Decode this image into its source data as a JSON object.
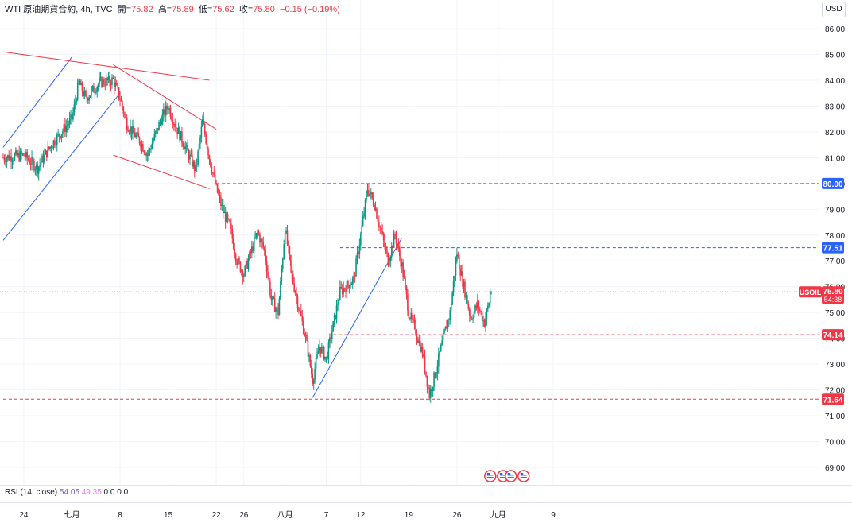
{
  "header": {
    "symbol_name": "WTI 原油期貨合約",
    "interval": "4h",
    "source": "TVC",
    "open_label": "開",
    "open": "75.82",
    "high_label": "高",
    "high": "75.89",
    "low_label": "低",
    "low": "75.62",
    "close_label": "收",
    "close": "75.80",
    "change": "−0.15 (−0.19%)"
  },
  "currency_button": "USD",
  "rsi": {
    "label": "RSI (14, close)",
    "value1": "54.05",
    "value2": "49.35",
    "zeros": "0 0 0 0"
  },
  "colors": {
    "up": "#089981",
    "down": "#f23645",
    "trend_blue": "#2962ff",
    "trend_red": "#f23645",
    "level_blue": "#2962ff",
    "level_red": "#f23645"
  },
  "chart_data": {
    "type": "candlestick",
    "y_ticks": [
      "86.00",
      "85.00",
      "84.00",
      "83.00",
      "82.00",
      "81.00",
      "80.00",
      "79.00",
      "78.00",
      "77.00",
      "76.00",
      "75.00",
      "74.00",
      "73.00",
      "72.00",
      "71.00",
      "70.00",
      "69.00"
    ],
    "ylim": [
      68.7,
      86.3
    ],
    "x_ticks": [
      {
        "label": "24",
        "date": "2024-06-24"
      },
      {
        "label": "七月",
        "date": "2024-07-01"
      },
      {
        "label": "8",
        "date": "2024-07-08"
      },
      {
        "label": "15",
        "date": "2024-07-15"
      },
      {
        "label": "22",
        "date": "2024-07-22"
      },
      {
        "label": "26",
        "date": "2024-07-26"
      },
      {
        "label": "八月",
        "date": "2024-08-01"
      },
      {
        "label": "7",
        "date": "2024-08-07"
      },
      {
        "label": "12",
        "date": "2024-08-12"
      },
      {
        "label": "19",
        "date": "2024-08-19"
      },
      {
        "label": "26",
        "date": "2024-08-26"
      },
      {
        "label": "九月",
        "date": "2024-09-01"
      },
      {
        "label": "9",
        "date": "2024-09-09"
      }
    ],
    "price_path": [
      [
        "2024-06-21",
        81.0
      ],
      [
        "2024-06-24",
        81.1
      ],
      [
        "2024-06-26",
        80.6
      ],
      [
        "2024-06-28",
        81.5
      ],
      [
        "2024-07-01",
        82.5
      ],
      [
        "2024-07-02",
        83.9
      ],
      [
        "2024-07-03",
        83.3
      ],
      [
        "2024-07-05",
        83.9
      ],
      [
        "2024-07-07",
        84.0
      ],
      [
        "2024-07-08",
        83.3
      ],
      [
        "2024-07-09",
        82.3
      ],
      [
        "2024-07-11",
        81.6
      ],
      [
        "2024-07-12",
        81.1
      ],
      [
        "2024-07-14",
        82.5
      ],
      [
        "2024-07-15",
        83.0
      ],
      [
        "2024-07-16",
        82.3
      ],
      [
        "2024-07-18",
        81.1
      ],
      [
        "2024-07-19",
        80.5
      ],
      [
        "2024-07-20",
        82.4
      ],
      [
        "2024-07-21",
        81.0
      ],
      [
        "2024-07-22",
        79.8
      ],
      [
        "2024-07-23",
        78.9
      ],
      [
        "2024-07-24",
        78.3
      ],
      [
        "2024-07-25",
        77.0
      ],
      [
        "2024-07-26",
        76.5
      ],
      [
        "2024-07-28",
        78.1
      ],
      [
        "2024-07-29",
        77.4
      ],
      [
        "2024-07-30",
        75.5
      ],
      [
        "2024-07-31",
        75.0
      ],
      [
        "2024-08-01",
        78.3
      ],
      [
        "2024-08-02",
        76.4
      ],
      [
        "2024-08-04",
        74.0
      ],
      [
        "2024-08-05",
        72.4
      ],
      [
        "2024-08-06",
        73.7
      ],
      [
        "2024-08-07",
        73.2
      ],
      [
        "2024-08-08",
        74.5
      ],
      [
        "2024-08-09",
        75.8
      ],
      [
        "2024-08-11",
        76.3
      ],
      [
        "2024-08-12",
        78.0
      ],
      [
        "2024-08-13",
        79.8
      ],
      [
        "2024-08-14",
        79.2
      ],
      [
        "2024-08-15",
        78.1
      ],
      [
        "2024-08-16",
        77.0
      ],
      [
        "2024-08-17",
        78.0
      ],
      [
        "2024-08-18",
        76.8
      ],
      [
        "2024-08-19",
        75.0
      ],
      [
        "2024-08-20",
        74.3
      ],
      [
        "2024-08-21",
        73.4
      ],
      [
        "2024-08-22",
        71.8
      ],
      [
        "2024-08-23",
        72.8
      ],
      [
        "2024-08-24",
        74.0
      ],
      [
        "2024-08-25",
        75.0
      ],
      [
        "2024-08-26",
        77.3
      ],
      [
        "2024-08-27",
        76.0
      ],
      [
        "2024-08-28",
        74.8
      ],
      [
        "2024-08-29",
        75.3
      ],
      [
        "2024-08-30",
        74.6
      ],
      [
        "2024-08-31",
        75.8
      ]
    ],
    "last_price": 75.8,
    "price_labels": [
      {
        "value": 80.0,
        "text": "80.00",
        "color": "blue",
        "line": "dashed",
        "from": "2024-07-22"
      },
      {
        "value": 77.51,
        "text": "77.51",
        "color": "blue",
        "line": "dashed",
        "from": "2024-08-09"
      },
      {
        "value": 74.14,
        "text": "74.14",
        "color": "red",
        "line": "dashed",
        "from": "2024-08-08"
      },
      {
        "value": 71.64,
        "text": "71.64",
        "color": "red",
        "line": "dashed",
        "from": "2024-06-21"
      }
    ],
    "symbol_tag": {
      "symbol": "USOIL",
      "price": "75.80",
      "countdown": "54:38"
    },
    "trendlines": [
      {
        "color": "blue",
        "from": [
          "2024-06-21",
          77.8
        ],
        "to": [
          "2024-07-08",
          83.5
        ]
      },
      {
        "color": "blue",
        "from": [
          "2024-06-21",
          81.4
        ],
        "to": [
          "2024-07-01",
          84.9
        ]
      },
      {
        "color": "red",
        "from": [
          "2024-06-21",
          85.1
        ],
        "to": [
          "2024-07-21",
          84.0
        ]
      },
      {
        "color": "red",
        "from": [
          "2024-07-07",
          84.6
        ],
        "to": [
          "2024-07-22",
          82.1
        ]
      },
      {
        "color": "red",
        "from": [
          "2024-07-07",
          81.1
        ],
        "to": [
          "2024-07-21",
          79.8
        ]
      },
      {
        "color": "blue",
        "from": [
          "2024-08-05",
          71.7
        ],
        "to": [
          "2024-08-18",
          77.9
        ]
      }
    ],
    "grid": true,
    "event_icons": [
      {
        "date": "2024-09-01",
        "count": 2
      },
      {
        "date": "2024-09-04",
        "count": 2
      }
    ]
  }
}
